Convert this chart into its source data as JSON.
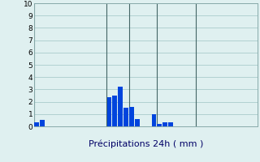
{
  "title": "",
  "xlabel": "Précipitations 24h ( mm )",
  "background_color": "#dff0f0",
  "bar_color": "#0044dd",
  "grid_color": "#aacccc",
  "grid_color2": "#99bbbb",
  "ylim": [
    0,
    10
  ],
  "yticks": [
    0,
    1,
    2,
    3,
    4,
    5,
    6,
    7,
    8,
    9,
    10
  ],
  "num_bars": 40,
  "bar_values": [
    0.3,
    0.5,
    0,
    0,
    0,
    0,
    0,
    0,
    0,
    0,
    0,
    0,
    0,
    2.4,
    2.5,
    3.2,
    1.5,
    1.6,
    0.6,
    0,
    0,
    1.0,
    0.2,
    0.3,
    0.3,
    0,
    0,
    0,
    0,
    0,
    0,
    0,
    0,
    0,
    0,
    0,
    0,
    0,
    0,
    0
  ]
}
